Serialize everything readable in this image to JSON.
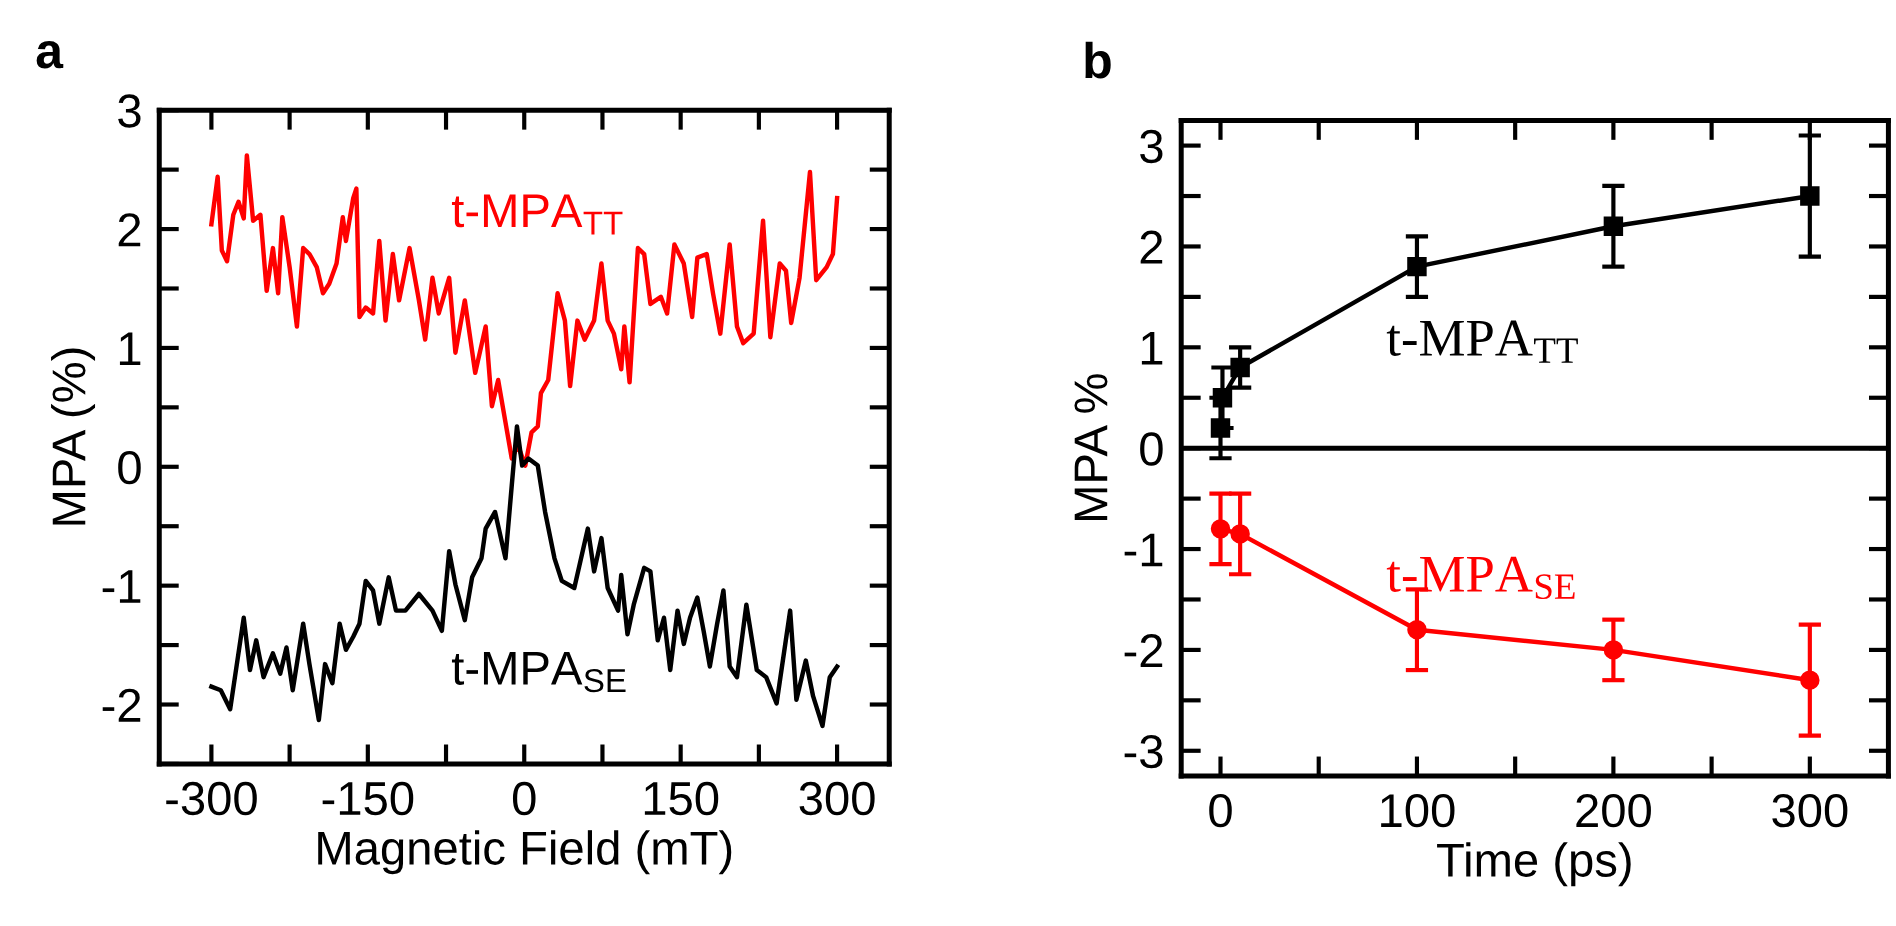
{
  "chart_data": [
    {
      "type": "line",
      "title": "a",
      "xlabel": "Magnetic Field (mT)",
      "ylabel": "MPA (%)",
      "xlim": [
        -350,
        350
      ],
      "xticks": [
        -300,
        {
          "value": -225,
          "label": null
        },
        -150,
        {
          "value": -75,
          "label": null
        },
        0,
        {
          "value": 75,
          "label": null
        },
        150,
        {
          "value": 225,
          "label": null
        },
        300
      ],
      "ylim": [
        -2.5,
        3
      ],
      "yticks": [
        {
          "value": -2.5,
          "label": null
        },
        -2,
        {
          "value": -1.5,
          "label": null
        },
        -1,
        {
          "value": -0.5,
          "label": null
        },
        0,
        {
          "value": 0.5,
          "label": null
        },
        1,
        {
          "value": 1.5,
          "label": null
        },
        2,
        {
          "value": 2.5,
          "label": null
        },
        3
      ],
      "series": [
        {
          "name": "t-MPA$_{TT}$",
          "color": "#ff0000",
          "x": [
            -300,
            -294,
            -290,
            -285,
            -279,
            -274,
            -269,
            -266,
            -260,
            -253,
            -247,
            -241,
            -236,
            -232,
            -225,
            -218,
            -212,
            -206,
            -199,
            -193,
            -187,
            -180,
            -174,
            -171,
            -164,
            -161,
            -158,
            -152,
            -145,
            -139,
            -133,
            -126,
            -120,
            -110,
            -101,
            -95,
            -88,
            -82,
            -72,
            -66,
            -57,
            -47,
            -37,
            -31,
            -25,
            -12,
            -6,
            1,
            7,
            13,
            16,
            23,
            32,
            39,
            44,
            51,
            58,
            67,
            74,
            80,
            86,
            93,
            96,
            101,
            109,
            115,
            121,
            131,
            137,
            144,
            153,
            161,
            166,
            175,
            181,
            188,
            197,
            204,
            210,
            220,
            229,
            236,
            245,
            251,
            256,
            264,
            274,
            280,
            290,
            296,
            300
          ],
          "values": [
            2.04,
            2.44,
            1.82,
            1.73,
            2.12,
            2.23,
            2.09,
            2.62,
            2.07,
            2.12,
            1.48,
            1.84,
            1.46,
            2.1,
            1.68,
            1.18,
            1.84,
            1.79,
            1.68,
            1.46,
            1.54,
            1.71,
            2.1,
            1.9,
            2.26,
            2.34,
            1.26,
            1.34,
            1.29,
            1.9,
            1.23,
            1.79,
            1.4,
            1.84,
            1.4,
            1.07,
            1.59,
            1.29,
            1.59,
            0.96,
            1.4,
            0.79,
            1.18,
            0.51,
            0.73,
            0.07,
            0.18,
            0.01,
            0.29,
            0.34,
            0.62,
            0.73,
            1.46,
            1.23,
            0.68,
            1.23,
            1.07,
            1.23,
            1.71,
            1.23,
            1.12,
            0.82,
            1.18,
            0.71,
            1.84,
            1.79,
            1.37,
            1.43,
            1.29,
            1.87,
            1.71,
            1.26,
            1.76,
            1.79,
            1.46,
            1.12,
            1.87,
            1.18,
            1.04,
            1.12,
            2.07,
            1.09,
            1.71,
            1.65,
            1.21,
            1.59,
            2.48,
            1.57,
            1.68,
            1.79,
            2.26
          ]
        },
        {
          "name": "t-MPA$_{SE}$",
          "color": "#000000",
          "x": [
            -300,
            -291,
            -282,
            -269,
            -263,
            -257,
            -250,
            -241,
            -234,
            -228,
            -222,
            -212,
            -206,
            -197,
            -191,
            -184,
            -177,
            -171,
            -164,
            -158,
            -152,
            -145,
            -139,
            -130,
            -123,
            -114,
            -101,
            -88,
            -79,
            -72,
            -66,
            -57,
            -50,
            -41,
            -37,
            -28,
            -18,
            -12,
            -7,
            -2,
            4,
            13,
            20,
            29,
            36,
            48,
            61,
            67,
            74,
            80,
            90,
            93,
            99,
            105,
            115,
            121,
            128,
            134,
            140,
            147,
            153,
            159,
            166,
            172,
            178,
            185,
            191,
            197,
            204,
            213,
            223,
            232,
            242,
            255,
            261,
            270,
            277,
            286,
            293,
            300
          ],
          "values": [
            -1.85,
            -1.88,
            -2.04,
            -1.27,
            -1.71,
            -1.46,
            -1.77,
            -1.57,
            -1.74,
            -1.52,
            -1.88,
            -1.32,
            -1.66,
            -2.13,
            -1.66,
            -1.82,
            -1.32,
            -1.54,
            -1.43,
            -1.32,
            -0.96,
            -1.04,
            -1.32,
            -0.93,
            -1.21,
            -1.21,
            -1.07,
            -1.21,
            -1.38,
            -0.71,
            -0.99,
            -1.29,
            -0.93,
            -0.77,
            -0.52,
            -0.38,
            -0.77,
            -0.16,
            0.34,
            0.01,
            0.07,
            0.01,
            -0.38,
            -0.77,
            -0.96,
            -1.02,
            -0.52,
            -0.88,
            -0.6,
            -1.02,
            -1.21,
            -0.91,
            -1.41,
            -1.16,
            -0.85,
            -0.88,
            -1.46,
            -1.27,
            -1.71,
            -1.21,
            -1.49,
            -1.27,
            -1.1,
            -1.38,
            -1.68,
            -1.32,
            -1.04,
            -1.68,
            -1.77,
            -1.16,
            -1.71,
            -1.77,
            -1.99,
            -1.21,
            -1.96,
            -1.63,
            -1.93,
            -2.18,
            -1.77,
            -1.68
          ]
        }
      ]
    },
    {
      "type": "line",
      "title": "b",
      "xlabel": "Time (ps)",
      "ylabel": "MPA %",
      "xlim": [
        -20,
        340
      ],
      "xticks": [
        0,
        {
          "value": 50,
          "label": null
        },
        100,
        {
          "value": 150,
          "label": null
        },
        200,
        {
          "value": 250,
          "label": null
        },
        300
      ],
      "ylim": [
        -3.25,
        3.25
      ],
      "yticks": [
        -3,
        {
          "value": -2.5,
          "label": null
        },
        -2,
        {
          "value": -1.5,
          "label": null
        },
        -1,
        {
          "value": -0.5,
          "label": null
        },
        0,
        {
          "value": 0.5,
          "label": null
        },
        1,
        {
          "value": 1.5,
          "label": null
        },
        2,
        {
          "value": 2.5,
          "label": null
        },
        3
      ],
      "ref_lines": [
        {
          "axis": "y",
          "value": 0,
          "color": "#000000"
        }
      ],
      "series": [
        {
          "name": "t-MPA$_{TT}$",
          "color": "#000000",
          "marker": "square",
          "x": [
            0,
            1,
            10,
            100,
            200,
            300
          ],
          "values": [
            0.2,
            0.5,
            0.8,
            1.8,
            2.2,
            2.5
          ],
          "errors": [
            0.3,
            0.3,
            0.2,
            0.3,
            0.4,
            0.6
          ]
        },
        {
          "name": "t-MPA$_{SE}$",
          "color": "#ff0000",
          "marker": "circle",
          "x": [
            0,
            10,
            100,
            200,
            300
          ],
          "values": [
            -0.8,
            -0.85,
            -1.8,
            -2.0,
            -2.3
          ],
          "errors": [
            0.35,
            0.4,
            0.4,
            0.3,
            0.55
          ]
        }
      ]
    }
  ]
}
